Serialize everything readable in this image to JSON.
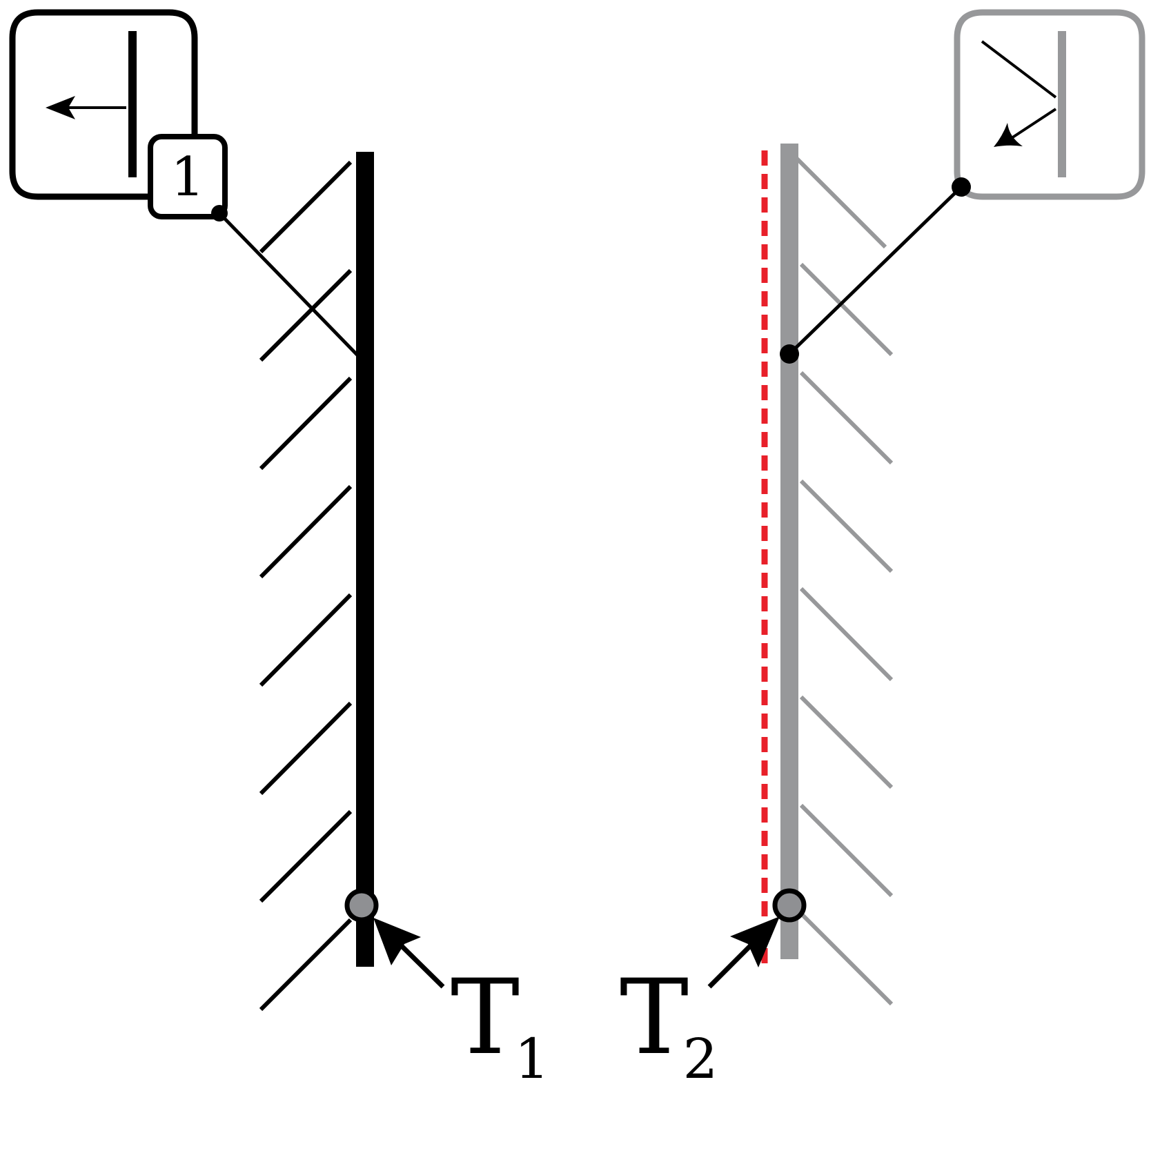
{
  "colors": {
    "black": "#000000",
    "gray": "#97989a",
    "dashed_red": "#e8202a",
    "joint_fill": "#8f9093",
    "background": "#ffffff"
  },
  "labels": {
    "tag_1": "1",
    "t1_letter": "T",
    "t1_sub": "1",
    "t2_letter": "T",
    "t2_sub": "2"
  }
}
